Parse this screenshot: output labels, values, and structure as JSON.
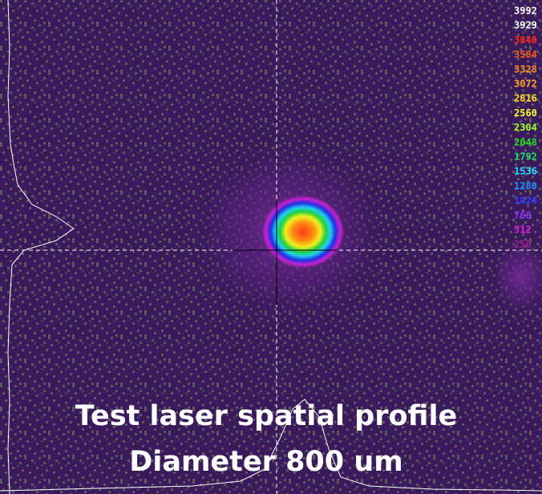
{
  "scale": {
    "labels": [
      "3992",
      "3929",
      "3840",
      "3584",
      "3328",
      "3072",
      "2816",
      "2560",
      "2304",
      "2048",
      "1792",
      "1536",
      "1280",
      "1024",
      "768",
      "512",
      "256"
    ]
  },
  "caption": {
    "lines": [
      "Test laser spatial profile",
      "Diameter 800 um"
    ]
  }
}
